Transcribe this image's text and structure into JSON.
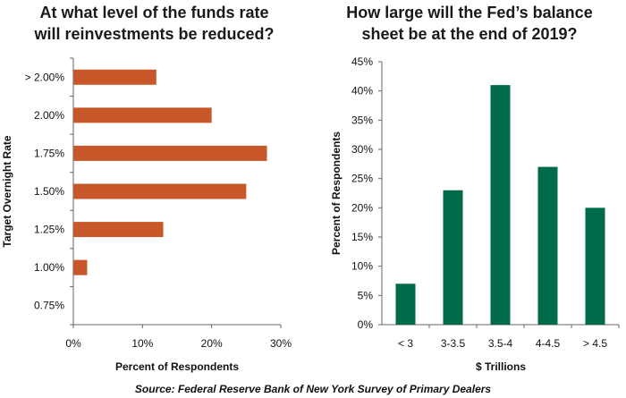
{
  "source": "Source: Federal Reserve Bank of New York Survey of Primary Dealers",
  "colors": {
    "left_bar": "#c8582a",
    "right_bar": "#006b4a",
    "axis": "#666666"
  },
  "chart_data": [
    {
      "type": "bar",
      "orientation": "horizontal",
      "title_lines": [
        "At what level of the funds rate",
        "will reinvestments be reduced?"
      ],
      "xlabel": "Percent of Respondents",
      "ylabel": "Target Overnight Rate",
      "categories": [
        "> 2.00%",
        "2.00%",
        "1.75%",
        "1.50%",
        "1.25%",
        "1.00%",
        "0.75%"
      ],
      "values": [
        12,
        20,
        28,
        25,
        13,
        2,
        0
      ],
      "xlim": [
        0,
        30
      ],
      "xticks": [
        "0%",
        "10%",
        "20%",
        "30%"
      ],
      "grid": false
    },
    {
      "type": "bar",
      "orientation": "vertical",
      "title_lines": [
        "How large will the Fed’s balance",
        "sheet be at the end of 2019?"
      ],
      "xlabel": "$ Trillions",
      "ylabel": "Percent of Respondents",
      "categories": [
        "< 3",
        "3-3.5",
        "3.5-4",
        "4-4.5",
        "> 4.5"
      ],
      "values": [
        7,
        23,
        41,
        27,
        20
      ],
      "ylim": [
        0,
        45
      ],
      "yticks": [
        "0%",
        "5%",
        "10%",
        "15%",
        "20%",
        "25%",
        "30%",
        "35%",
        "40%",
        "45%"
      ],
      "grid": false
    }
  ]
}
